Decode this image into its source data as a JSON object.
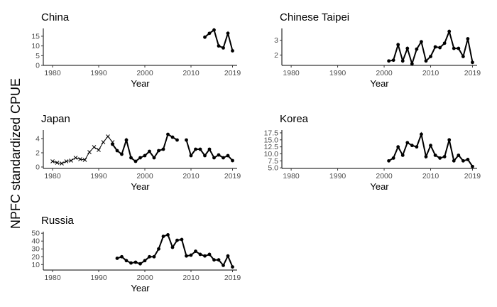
{
  "figure": {
    "ylabel": "NPFC standardized CPUE"
  },
  "chart_data": [
    {
      "type": "line",
      "title": "China",
      "xlabel": "Year",
      "ylabel": "",
      "xlim": [
        1978,
        2020
      ],
      "ylim": [
        0,
        19
      ],
      "xticks": [
        1980,
        1990,
        2000,
        2010,
        2019
      ],
      "yticks": [
        0,
        5,
        10,
        15
      ],
      "series": [
        {
          "marker": "point",
          "x": [
            2013,
            2014,
            2015,
            2016,
            2017,
            2018,
            2019
          ],
          "y": [
            14.5,
            16.5,
            18.2,
            10.0,
            9.0,
            16.5,
            7.5
          ]
        }
      ]
    },
    {
      "type": "line",
      "title": "Chinese Taipei",
      "xlabel": "Year",
      "ylabel": "",
      "xlim": [
        1978,
        2020
      ],
      "ylim": [
        1.3,
        3.8
      ],
      "xticks": [
        1980,
        1990,
        2000,
        2010,
        2019
      ],
      "yticks": [
        2,
        3
      ],
      "series": [
        {
          "marker": "point",
          "x": [
            2001,
            2002,
            2003,
            2004,
            2005,
            2006,
            2007,
            2008,
            2009,
            2010,
            2011,
            2012,
            2013,
            2014,
            2015,
            2016,
            2017,
            2018,
            2019
          ],
          "y": [
            1.6,
            1.65,
            2.7,
            1.6,
            2.45,
            1.4,
            2.4,
            2.9,
            1.6,
            1.9,
            2.55,
            2.5,
            2.8,
            3.6,
            2.45,
            2.45,
            1.9,
            3.1,
            1.5
          ]
        }
      ]
    },
    {
      "type": "line",
      "title": "Japan",
      "xlabel": "Year",
      "ylabel": "",
      "xlim": [
        1978,
        2020
      ],
      "ylim": [
        -0.2,
        5.2
      ],
      "xticks": [
        1980,
        1990,
        2000,
        2010,
        2019
      ],
      "yticks": [
        0,
        2,
        4
      ],
      "series": [
        {
          "marker": "cross",
          "x": [
            1980,
            1981,
            1982,
            1983,
            1984,
            1985,
            1986,
            1987,
            1988,
            1989,
            1990,
            1991,
            1992,
            1993
          ],
          "y": [
            0.8,
            0.6,
            0.5,
            0.8,
            0.9,
            1.3,
            1.1,
            1.0,
            2.1,
            2.8,
            2.4,
            3.5,
            4.3,
            3.5
          ]
        },
        {
          "marker": "point",
          "x": [
            1993,
            1994,
            1995,
            1996,
            1997,
            1998,
            1999,
            2000,
            2001,
            2002,
            2003,
            2004,
            2005,
            2006,
            2007
          ],
          "y": [
            3.2,
            2.3,
            1.8,
            3.8,
            1.3,
            0.8,
            1.3,
            1.6,
            2.2,
            1.3,
            2.3,
            2.5,
            4.6,
            4.2,
            3.8
          ]
        },
        {
          "marker": "point",
          "x": [
            2009,
            2010,
            2011,
            2012,
            2013,
            2014,
            2015,
            2016,
            2017,
            2018,
            2019
          ],
          "y": [
            3.8,
            1.6,
            2.5,
            2.5,
            1.6,
            2.5,
            1.3,
            1.7,
            1.3,
            1.6,
            0.9
          ]
        }
      ]
    },
    {
      "type": "line",
      "title": "Korea",
      "xlabel": "Year",
      "ylabel": "",
      "xlim": [
        1978,
        2020
      ],
      "ylim": [
        4.8,
        18.5
      ],
      "xticks": [
        1980,
        1990,
        2000,
        2010,
        2019
      ],
      "yticks": [
        5.0,
        7.5,
        10.0,
        12.5,
        15.0,
        17.5
      ],
      "ytick_labels": [
        "5.0",
        "7.5",
        "10.0",
        "12.5",
        "15.0",
        "17.5"
      ],
      "series": [
        {
          "marker": "point",
          "x": [
            2001,
            2002,
            2003,
            2004,
            2005,
            2006,
            2007,
            2008,
            2009,
            2010,
            2011,
            2012,
            2013,
            2014,
            2015,
            2016,
            2017,
            2018,
            2019
          ],
          "y": [
            7.5,
            8.5,
            12.5,
            9.5,
            14.0,
            13.0,
            12.5,
            17.0,
            9.0,
            13.0,
            9.5,
            8.5,
            9.0,
            15.0,
            7.5,
            9.5,
            7.5,
            8.0,
            5.5
          ]
        }
      ]
    },
    {
      "type": "line",
      "title": "Russia",
      "xlabel": "Year",
      "ylabel": "",
      "xlim": [
        1978,
        2020
      ],
      "ylim": [
        3,
        52
      ],
      "xticks": [
        1980,
        1990,
        2000,
        2010,
        2019
      ],
      "yticks": [
        10,
        20,
        30,
        40,
        50
      ],
      "series": [
        {
          "marker": "point",
          "x": [
            1994,
            1995,
            1996,
            1997,
            1998,
            1999,
            2000,
            2001,
            2002,
            2003,
            2004,
            2005,
            2006,
            2007,
            2008,
            2009,
            2010,
            2011,
            2012,
            2013,
            2014,
            2015,
            2016,
            2017,
            2018,
            2019
          ],
          "y": [
            18,
            20,
            15,
            12,
            13,
            11,
            15,
            20,
            20,
            30,
            46,
            48,
            32,
            41,
            42,
            21,
            22,
            27,
            23,
            21,
            23,
            16,
            16,
            9,
            21,
            7
          ]
        }
      ]
    }
  ]
}
